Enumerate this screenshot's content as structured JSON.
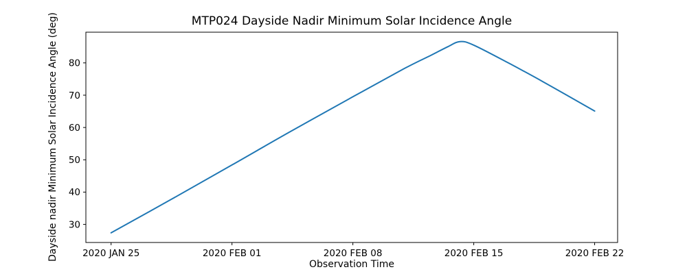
{
  "chart_data": {
    "type": "line",
    "title": "MTP024 Dayside Nadir Minimum Solar Incidence Angle",
    "xlabel": "Observation Time",
    "ylabel": "Dayside nadir Minimum Solar Incidence Angle (deg)",
    "legend": "none",
    "grid": false,
    "line_color": "#1f77b4",
    "axis_color": "#000000",
    "background_color": "#ffffff",
    "x_tick_labels": [
      "2020 JAN 25",
      "2020 FEB 01",
      "2020 FEB 08",
      "2020 FEB 15",
      "2020 FEB 22"
    ],
    "x_tick_days": [
      0,
      7,
      14,
      21,
      28
    ],
    "x_unit": "days since 2020 JAN 25",
    "y_ticks": [
      30,
      40,
      50,
      60,
      70,
      80
    ],
    "xlim_days": [
      -1.46,
      29.33
    ],
    "ylim": [
      24.4,
      89.5
    ],
    "series": [
      {
        "name": "dayside-nadir-minimum-solar-incidence-angle",
        "x_days": [
          0,
          3.5,
          7,
          10.5,
          14,
          17,
          18.5,
          19.5,
          20.2,
          21,
          23,
          25,
          28
        ],
        "values": [
          27.4,
          37.8,
          48.4,
          59.1,
          69.5,
          78.3,
          82.3,
          85.0,
          86.6,
          85.5,
          80.0,
          74.2,
          65.1
        ],
        "peak": {
          "day": 20.2,
          "date": "2020 FEB 14",
          "value": 86.6
        },
        "start": {
          "day": 0,
          "date": "2020 JAN 25",
          "value": 27.4
        },
        "end": {
          "day": 28,
          "date": "2020 FEB 22",
          "value": 65.1
        }
      }
    ]
  }
}
